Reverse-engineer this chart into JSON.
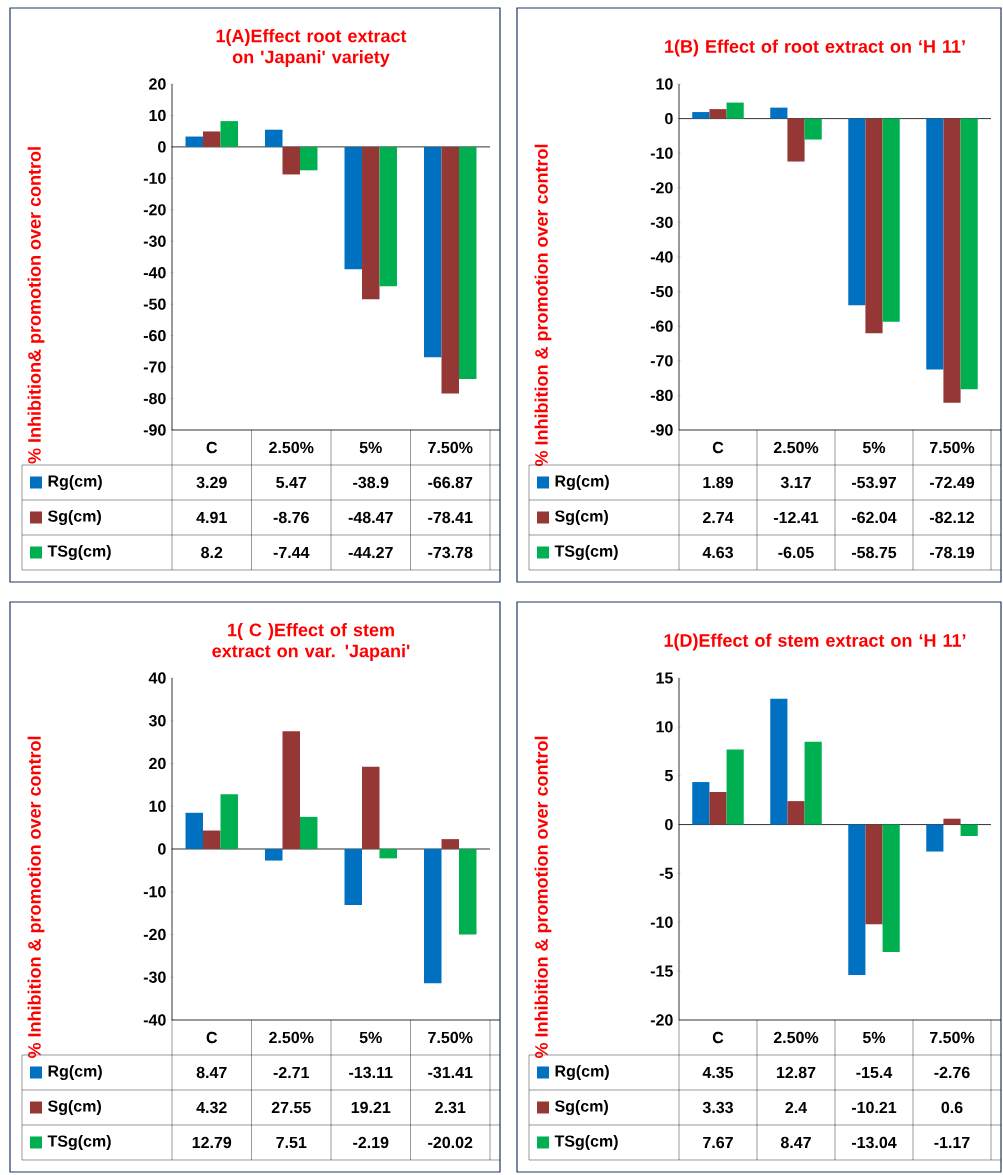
{
  "chart_data": [
    {
      "type": "bar",
      "title": "1(A)Effect root extract on 'Japani' variety",
      "ylabel": "% Inhibition& promotion over control",
      "categories": [
        "C",
        "2.50%",
        "5%",
        "7.50%"
      ],
      "series": [
        {
          "name": "Rg(cm)",
          "color": "#0070c0",
          "values": [
            3.29,
            5.47,
            -38.9,
            -66.87
          ]
        },
        {
          "name": "Sg(cm)",
          "color": "#953735",
          "values": [
            4.91,
            -8.76,
            -48.47,
            -78.41
          ]
        },
        {
          "name": "TSg(cm)",
          "color": "#00b050",
          "values": [
            8.2,
            -7.44,
            -44.27,
            -73.78
          ]
        }
      ],
      "ylim": [
        -90,
        20
      ],
      "yticks": [
        -90,
        -80,
        -70,
        -60,
        -50,
        -40,
        -30,
        -20,
        -10,
        0,
        10,
        20
      ],
      "data_labels": true,
      "legend": "bottom left"
    },
    {
      "type": "bar",
      "title": "1(B) Effect of root extract on ‘H 11’",
      "ylabel": "% Inhibition & promotion over control",
      "categories": [
        "C",
        "2.50%",
        "5%",
        "7.50%"
      ],
      "series": [
        {
          "name": "Rg(cm)",
          "color": "#0070c0",
          "values": [
            1.89,
            3.17,
            -53.97,
            -72.49
          ]
        },
        {
          "name": "Sg(cm)",
          "color": "#953735",
          "values": [
            2.74,
            -12.41,
            -62.04,
            -82.12
          ]
        },
        {
          "name": "TSg(cm)",
          "color": "#00b050",
          "values": [
            4.63,
            -6.05,
            -58.75,
            -78.19
          ]
        }
      ],
      "ylim": [
        -90,
        10
      ],
      "yticks": [
        -90,
        -80,
        -70,
        -60,
        -50,
        -40,
        -30,
        -20,
        -10,
        0,
        10
      ],
      "data_labels": true,
      "legend": "bottom left"
    },
    {
      "type": "bar",
      "title": "1( C )Effect of stem extract on var. 'Japani'",
      "ylabel": "% Inhibition & promotion over control",
      "categories": [
        "C",
        "2.50%",
        "5%",
        "7.50%"
      ],
      "series": [
        {
          "name": "Rg(cm)",
          "color": "#0070c0",
          "values": [
            8.47,
            -2.71,
            -13.11,
            -31.41
          ]
        },
        {
          "name": "Sg(cm)",
          "color": "#953735",
          "values": [
            4.32,
            27.55,
            19.21,
            2.31
          ]
        },
        {
          "name": "TSg(cm)",
          "color": "#00b050",
          "values": [
            12.79,
            7.51,
            -2.19,
            -20.02
          ]
        }
      ],
      "ylim": [
        -40,
        40
      ],
      "yticks": [
        -40,
        -30,
        -20,
        -10,
        0,
        10,
        20,
        30,
        40
      ],
      "data_labels": true,
      "legend": "bottom left"
    },
    {
      "type": "bar",
      "title": "1(D)Effect of stem extract on ‘H 11’",
      "ylabel": "% Inhibition & promotion over control",
      "categories": [
        "C",
        "2.50%",
        "5%",
        "7.50%"
      ],
      "series": [
        {
          "name": "Rg(cm)",
          "color": "#0070c0",
          "values": [
            4.35,
            12.87,
            -15.4,
            -2.76
          ]
        },
        {
          "name": "Sg(cm)",
          "color": "#953735",
          "values": [
            3.33,
            2.4,
            -10.21,
            0.6
          ]
        },
        {
          "name": "TSg(cm)",
          "color": "#00b050",
          "values": [
            7.67,
            8.47,
            -13.04,
            -1.17
          ]
        }
      ],
      "ylim": [
        -20,
        15
      ],
      "yticks": [
        -20,
        -15,
        -10,
        -5,
        0,
        5,
        10,
        15
      ],
      "data_labels": true,
      "legend": "bottom left"
    }
  ]
}
